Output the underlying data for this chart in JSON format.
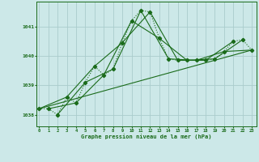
{
  "xlabel": "Graphe pression niveau de la mer (hPa)",
  "background_color": "#cce8e8",
  "grid_color": "#aacccc",
  "line_color": "#1a6b1a",
  "x_ticks": [
    0,
    1,
    2,
    3,
    4,
    5,
    6,
    7,
    8,
    9,
    10,
    11,
    12,
    13,
    14,
    15,
    16,
    17,
    18,
    19,
    20,
    21,
    22,
    23
  ],
  "y_ticks": [
    1038,
    1039,
    1040,
    1041
  ],
  "ylim": [
    1037.6,
    1041.85
  ],
  "xlim": [
    -0.3,
    23.5
  ],
  "series": [
    {
      "x": [
        0,
        1,
        2,
        3,
        4,
        5,
        6,
        7,
        8,
        9,
        10,
        11,
        12,
        13,
        14,
        15,
        16,
        17,
        18,
        19,
        20,
        21,
        22,
        23
      ],
      "y": [
        1038.2,
        1038.2,
        1038.0,
        1038.6,
        1038.4,
        1039.1,
        1039.65,
        1039.35,
        1039.55,
        1040.45,
        1041.2,
        1041.55,
        1041.5,
        1040.6,
        1039.9,
        1039.85,
        1039.85,
        1039.85,
        1039.85,
        1039.9,
        1040.15,
        1040.5,
        1040.55,
        1040.2
      ],
      "style": "dotted",
      "marker": "D",
      "markersize": 2.5,
      "linewidth": 0.8
    },
    {
      "x": [
        0,
        3,
        6,
        9,
        12,
        15,
        18,
        21
      ],
      "y": [
        1038.2,
        1038.6,
        1039.65,
        1040.45,
        1041.5,
        1039.85,
        1039.85,
        1040.5
      ],
      "style": "solid",
      "marker": "D",
      "markersize": 2.5,
      "linewidth": 0.8
    },
    {
      "x": [
        1,
        4,
        7,
        10,
        13,
        16,
        19,
        22
      ],
      "y": [
        1038.2,
        1038.4,
        1039.35,
        1041.2,
        1040.6,
        1039.85,
        1039.9,
        1040.55
      ],
      "style": "solid",
      "marker": "D",
      "markersize": 2.5,
      "linewidth": 0.8
    },
    {
      "x": [
        2,
        5,
        8,
        11,
        14,
        17,
        20,
        23
      ],
      "y": [
        1038.0,
        1039.1,
        1039.55,
        1041.55,
        1039.9,
        1039.85,
        1040.15,
        1040.2
      ],
      "style": "solid",
      "marker": "D",
      "markersize": 2.5,
      "linewidth": 0.8
    },
    {
      "x": [
        0,
        23
      ],
      "y": [
        1038.2,
        1040.2
      ],
      "style": "solid",
      "marker": null,
      "markersize": 0,
      "linewidth": 0.8
    }
  ]
}
